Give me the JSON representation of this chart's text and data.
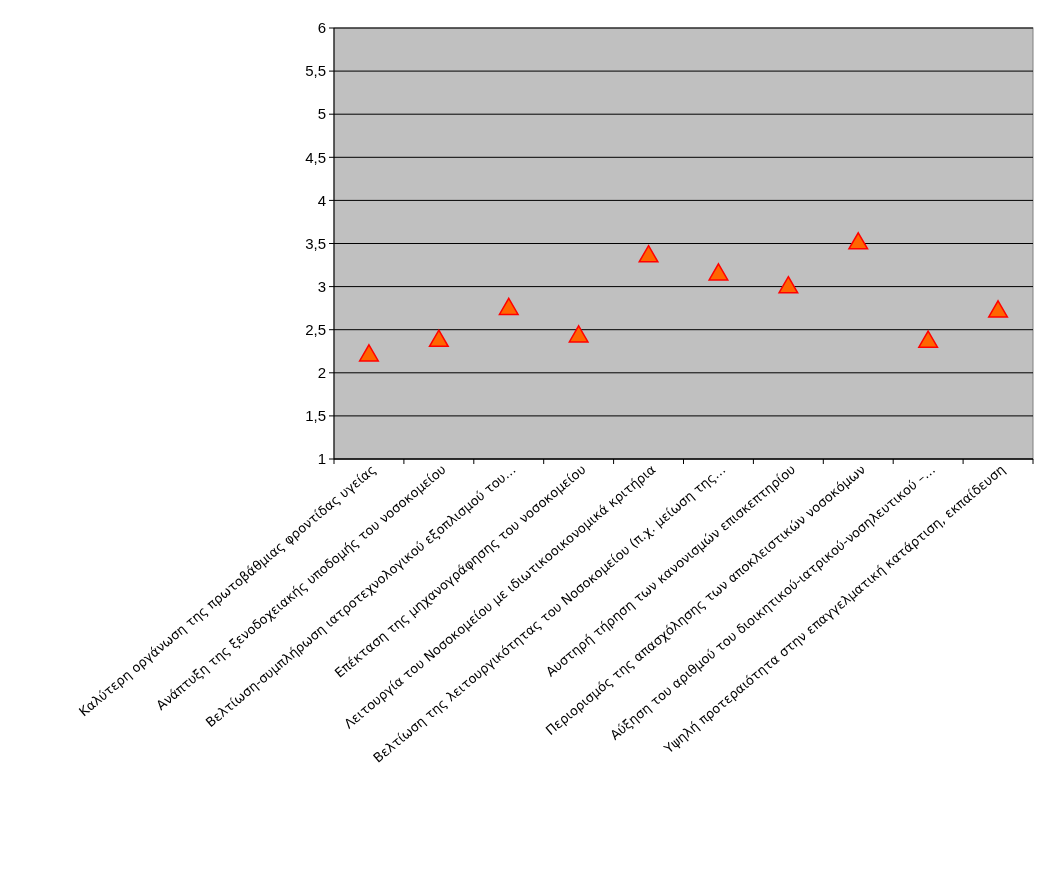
{
  "chart_data": {
    "type": "scatter",
    "categories": [
      "Καλύτερη οργάνωση της πρωτοβάθμιας φροντίδας υγείας",
      "Ανάπτυξη της ξενοδοχειακής υποδομής του νοσοκομείου",
      "Βελτίωση-συμπλήρωση ιατροτεχνολογικού εξοπλισμού του…",
      "Επέκταση της μηχανογράφησης του νοσοκομείου",
      "Λειτουργία του Νοσοκομείου με ιδιωτικοοικονομικά κριτήρια",
      "Βελτίωση της λειτουργικότητας του Νοσοκομείου (π.χ. μείωση της…",
      "Αυστηρή τήρηση των κανονισμών επισκεπτηρίου",
      "Περιορισμός της απασχόλησης των αποκλειστικών νοσοκόμων",
      "Αύξηση του αριθμού του διοικητικού-ιατρικού-νοσηλευτικού –…",
      "Υψηλή προτεραιότητα στην επαγγελματική κατάρτιση, εκπαίδευση"
    ],
    "values": [
      2.2,
      2.37,
      2.74,
      2.42,
      3.35,
      3.14,
      2.99,
      3.5,
      2.36,
      2.71
    ],
    "color": "#ff6600",
    "marker": "triangle",
    "ylim": [
      1,
      6
    ],
    "yticks": [
      {
        "value": 1,
        "label": "1"
      },
      {
        "value": 1.5,
        "label": "1,5"
      },
      {
        "value": 2,
        "label": "2"
      },
      {
        "value": 2.5,
        "label": "2,5"
      },
      {
        "value": 3,
        "label": "3"
      },
      {
        "value": 3.5,
        "label": "3,5"
      },
      {
        "value": 4,
        "label": "4"
      },
      {
        "value": 4.5,
        "label": "4,5"
      },
      {
        "value": 5,
        "label": "5"
      },
      {
        "value": 5.5,
        "label": "5,5"
      },
      {
        "value": 6,
        "label": "6"
      }
    ],
    "grid": "y"
  }
}
